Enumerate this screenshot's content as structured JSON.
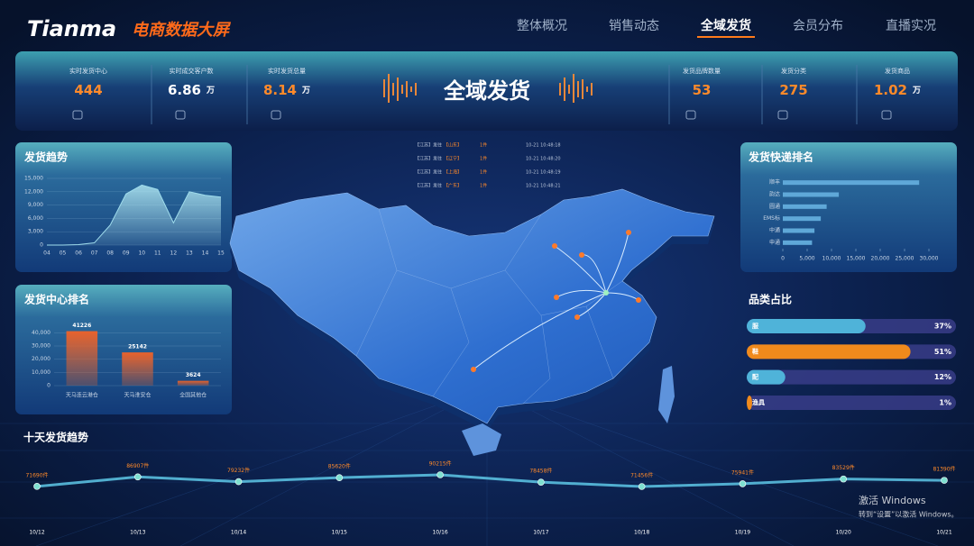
{
  "header": {
    "logo": "Tianma",
    "title": "电商数据大屏",
    "nav": [
      "整体概况",
      "销售动态",
      "全域发货",
      "会员分布",
      "直播实况"
    ],
    "active_nav": 2
  },
  "banner_title": "全域发货",
  "kpis": [
    {
      "label": "实时发货中心",
      "value": "444",
      "color": "#ff8a2a"
    },
    {
      "label": "实时成交客户数",
      "value": "6.86",
      "unit": "万",
      "color": "#ffffff"
    },
    {
      "label": "实时发货总量",
      "value": "8.14",
      "unit": "万",
      "color": "#ff8a2a"
    },
    {
      "label": "发货品牌数量",
      "value": "53",
      "color": "#ff8a2a"
    },
    {
      "label": "发货分类",
      "value": "275",
      "color": "#ff8a2a"
    },
    {
      "label": "发货商品",
      "value": "1.02",
      "unit": "万",
      "color": "#ff8a2a"
    }
  ],
  "shipment_feed": [
    {
      "from": "【江苏】发往",
      "to": "【山东】",
      "qty": "1件",
      "time": "10-21 10:48:18"
    },
    {
      "from": "【江苏】发往",
      "to": "【辽宁】",
      "qty": "1件",
      "time": "10-21 10:48:20"
    },
    {
      "from": "【江苏】发往",
      "to": "【上海】",
      "qty": "1件",
      "time": "10-21 10:48:19"
    },
    {
      "from": "【江苏】发往",
      "to": "【广东】",
      "qty": "1件",
      "time": "10-21 10:48:21"
    }
  ],
  "chart_data": [
    {
      "type": "area",
      "title": "发货趋势",
      "categories": [
        "04",
        "05",
        "06",
        "07",
        "08",
        "09",
        "10",
        "11",
        "12",
        "13",
        "14",
        "15"
      ],
      "values": [
        0,
        0,
        100,
        500,
        4500,
        11500,
        13500,
        12500,
        5000,
        12000,
        11200,
        10800
      ],
      "ylim": [
        0,
        15000
      ],
      "yticks": [
        0,
        {
          "value": 3000,
          "label": "3,000"
        },
        {
          "value": 6000,
          "label": "6,000"
        },
        {
          "value": 9000,
          "label": "9,000"
        },
        {
          "value": 12000,
          "label": "12,000"
        },
        {
          "value": 15000,
          "label": "15,000"
        }
      ],
      "color": "#9fdcec",
      "grid": true
    },
    {
      "type": "bar",
      "title": "发货中心排名",
      "categories": [
        "天马连云港仓",
        "天马淮安仓",
        "全国其他仓"
      ],
      "values": [
        41226,
        25142,
        3624
      ],
      "ylim": [
        0,
        45000
      ],
      "yticks": [
        0,
        {
          "value": 10000,
          "label": "10,000"
        },
        {
          "value": 20000,
          "label": "20,000"
        },
        {
          "value": 30000,
          "label": "30,000"
        },
        {
          "value": 40000,
          "label": "40,000"
        }
      ],
      "color": "#e8622c",
      "grid": true
    },
    {
      "type": "hbar",
      "title": "发货快递排名",
      "categories": [
        "顺丰",
        "韵达",
        "圆通",
        "EMS标",
        "中通",
        "申通"
      ],
      "values": [
        28000,
        11500,
        9000,
        7800,
        6500,
        6000
      ],
      "xlim": [
        0,
        30000
      ],
      "xticks": [
        0,
        {
          "value": 5000,
          "label": "5,000"
        },
        {
          "value": 10000,
          "label": "10,000"
        },
        {
          "value": 15000,
          "label": "15,000"
        },
        {
          "value": 20000,
          "label": "20,000"
        },
        {
          "value": 25000,
          "label": "25,000"
        },
        {
          "value": 30000,
          "label": "30,000"
        }
      ],
      "color": "#5fa8d8"
    },
    {
      "type": "progress",
      "title": "品类占比",
      "categories": [
        "服",
        "鞋",
        "配",
        "渔具"
      ],
      "values": [
        37,
        51,
        12,
        1
      ],
      "value_labels": [
        "37%",
        "51%",
        "12%",
        "1%"
      ],
      "colors": [
        "#4fb3d9",
        "#f08a1c",
        "#4fb3d9",
        "#f08a1c"
      ]
    },
    {
      "type": "line",
      "title": "十天发货趋势",
      "categories": [
        "10/12",
        "10/13",
        "10/14",
        "10/15",
        "10/16",
        "10/17",
        "10/18",
        "10/19",
        "10/20",
        "10/21"
      ],
      "values": [
        71690,
        86907,
        79232,
        85620,
        90215,
        78458,
        71456,
        75941,
        83529,
        81390
      ],
      "value_labels": [
        "71690件",
        "86907件",
        "79232件",
        "85620件",
        "90215件",
        "78458件",
        "71456件",
        "75941件",
        "83529件",
        "81390件"
      ],
      "color": "#5ec8e8"
    }
  ],
  "watermark": {
    "title": "激活 Windows",
    "subtitle": "转到“设置”以激活 Windows。"
  }
}
